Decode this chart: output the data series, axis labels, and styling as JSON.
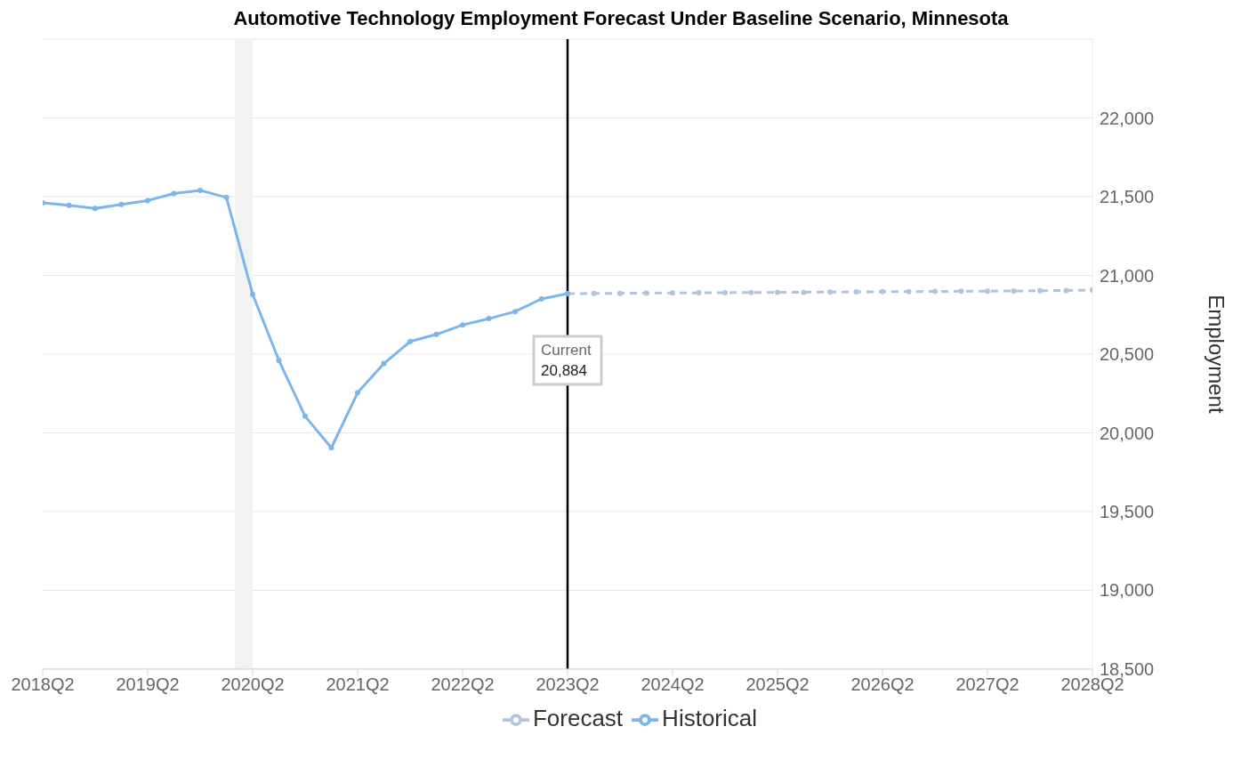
{
  "chart_data": {
    "type": "line",
    "title": "Automotive Technology Employment Forecast Under Baseline Scenario, Minnesota",
    "ylabel": "Employment",
    "series": [
      {
        "name": "Historical",
        "color": "#7cb5ec",
        "line_style": "solid",
        "x": [
          "2018-04",
          "2018-07",
          "2018-10",
          "2019-01",
          "2019-04",
          "2019-07",
          "2019-10",
          "2020-01",
          "2020-04",
          "2020-07",
          "2020-10",
          "2021-01",
          "2021-04",
          "2021-07",
          "2021-10",
          "2022-01",
          "2022-04",
          "2022-07",
          "2022-10",
          "2023-01",
          "2023-04"
        ],
        "values": [
          21460,
          21445,
          21425,
          21450,
          21475,
          21520,
          21540,
          21495,
          20880,
          20460,
          20105,
          19905,
          20255,
          20440,
          20580,
          20625,
          20685,
          20725,
          20770,
          20850,
          20884
        ]
      },
      {
        "name": "Forecast",
        "color": "#b0c4de",
        "line_style": "dashed",
        "x": [
          "2023-04",
          "2023-07",
          "2023-10",
          "2024-01",
          "2024-04",
          "2024-07",
          "2024-10",
          "2025-01",
          "2025-04",
          "2025-07",
          "2025-10",
          "2026-01",
          "2026-04",
          "2026-07",
          "2026-10",
          "2027-01",
          "2027-04",
          "2027-07",
          "2027-10",
          "2028-01",
          "2028-04"
        ],
        "values": [
          20884,
          20885,
          20886,
          20887,
          20888,
          20889,
          20890,
          20891,
          20892,
          20893,
          20894,
          20895,
          20896,
          20897,
          20898,
          20899,
          20900,
          20901,
          20902,
          20904,
          20906
        ]
      }
    ],
    "xlim": [
      "2018-04",
      "2028-04"
    ],
    "xticks": [
      {
        "value": "2018-04",
        "label": "2018Q2"
      },
      {
        "value": "2019-04",
        "label": "2019Q2"
      },
      {
        "value": "2020-04",
        "label": "2020Q2"
      },
      {
        "value": "2021-04",
        "label": "2021Q2"
      },
      {
        "value": "2022-04",
        "label": "2022Q2"
      },
      {
        "value": "2023-04",
        "label": "2023Q2"
      },
      {
        "value": "2024-04",
        "label": "2024Q2"
      },
      {
        "value": "2025-04",
        "label": "2025Q2"
      },
      {
        "value": "2026-04",
        "label": "2026Q2"
      },
      {
        "value": "2027-04",
        "label": "2027Q2"
      },
      {
        "value": "2028-04",
        "label": "2028Q2"
      }
    ],
    "ylim": [
      18500,
      22500
    ],
    "yticks": [
      {
        "value": 18500,
        "label": "18,500"
      },
      {
        "value": 19000,
        "label": "19,000"
      },
      {
        "value": 19500,
        "label": "19,500"
      },
      {
        "value": 20000,
        "label": "20,000"
      },
      {
        "value": 20500,
        "label": "20,500"
      },
      {
        "value": 21000,
        "label": "21,000"
      },
      {
        "value": 21500,
        "label": "21,500"
      },
      {
        "value": 22000,
        "label": "22,000"
      }
    ],
    "grid": "y",
    "legend": "bottom",
    "marker": "circle",
    "ref_lines": [
      {
        "axis": "x",
        "value": "2023-04",
        "color": "#000000",
        "label": "Current\n20,884"
      }
    ],
    "bands": [
      {
        "axis": "x",
        "from": "2020-02",
        "to": "2020-04",
        "color": "#f2f2f2"
      }
    ]
  }
}
